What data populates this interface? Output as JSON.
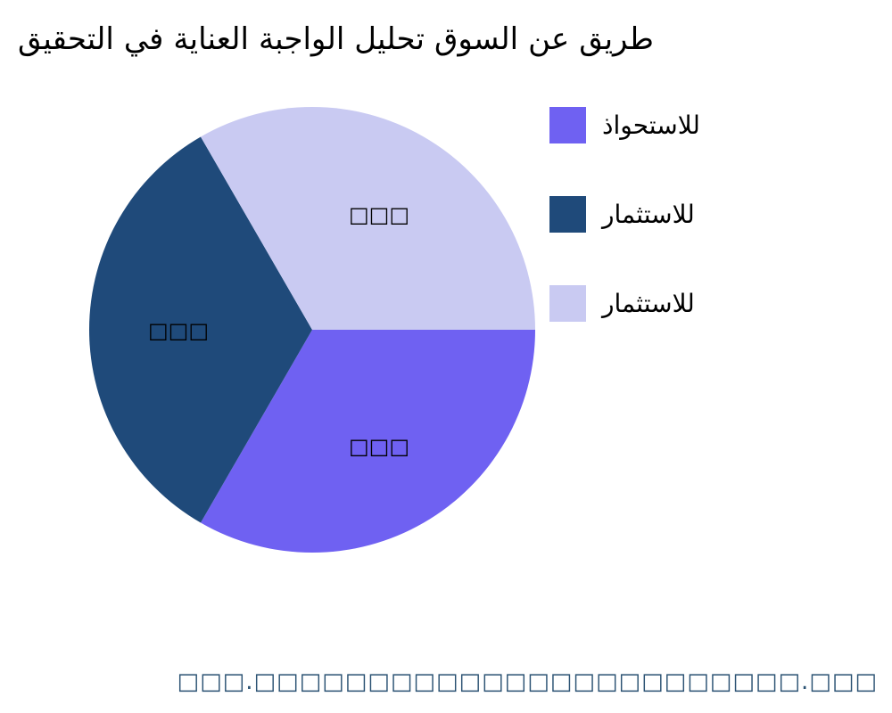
{
  "chart_data": {
    "type": "pie",
    "title": "التحقيق في العناية الواجبة تحليل السوق عن طريق",
    "slices": [
      {
        "label": "للاستحواذ",
        "value": 33.3,
        "data_label": "□□□",
        "color": "#6f61f2"
      },
      {
        "label": "للاستثمار",
        "value": 33.3,
        "data_label": "□□□",
        "color": "#1f4a7a"
      },
      {
        "label": "للاستثمار",
        "value": 33.3,
        "data_label": "□□□",
        "color": "#c9caf2"
      }
    ],
    "start_angle_deg": 0,
    "direction": "clockwise",
    "legend_position": "right"
  },
  "footer": "□□□.□□□□□□□□□□□□□□□□□□□□□□□□.□□□"
}
